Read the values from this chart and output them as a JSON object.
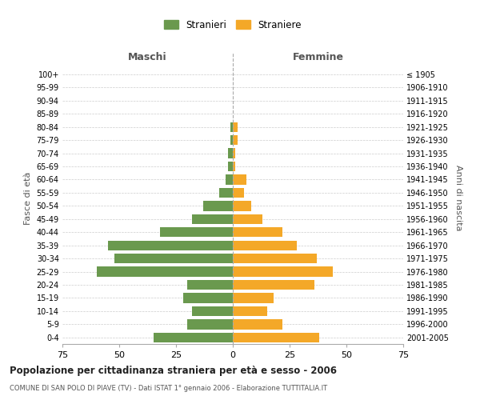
{
  "age_groups": [
    "0-4",
    "5-9",
    "10-14",
    "15-19",
    "20-24",
    "25-29",
    "30-34",
    "35-39",
    "40-44",
    "45-49",
    "50-54",
    "55-59",
    "60-64",
    "65-69",
    "70-74",
    "75-79",
    "80-84",
    "85-89",
    "90-94",
    "95-99",
    "100+"
  ],
  "birth_years": [
    "2001-2005",
    "1996-2000",
    "1991-1995",
    "1986-1990",
    "1981-1985",
    "1976-1980",
    "1971-1975",
    "1966-1970",
    "1961-1965",
    "1956-1960",
    "1951-1955",
    "1946-1950",
    "1941-1945",
    "1936-1940",
    "1931-1935",
    "1926-1930",
    "1921-1925",
    "1916-1920",
    "1911-1915",
    "1906-1910",
    "≤ 1905"
  ],
  "maschi": [
    35,
    20,
    18,
    22,
    20,
    60,
    52,
    55,
    32,
    18,
    13,
    6,
    3,
    2,
    2,
    1,
    1,
    0,
    0,
    0,
    0
  ],
  "femmine": [
    38,
    22,
    15,
    18,
    36,
    44,
    37,
    28,
    22,
    13,
    8,
    5,
    6,
    1,
    1,
    2,
    2,
    0,
    0,
    0,
    0
  ],
  "maschi_color": "#6a994e",
  "femmine_color": "#f4a828",
  "title": "Popolazione per cittadinanza straniera per età e sesso - 2006",
  "subtitle": "COMUNE DI SAN POLO DI PIAVE (TV) - Dati ISTAT 1° gennaio 2006 - Elaborazione TUTTITALIA.IT",
  "xlabel_left": "Maschi",
  "xlabel_right": "Femmine",
  "ylabel_left": "Fasce di età",
  "ylabel_right": "Anni di nascita",
  "legend_maschi": "Stranieri",
  "legend_femmine": "Straniere",
  "xlim": 75,
  "background_color": "#ffffff",
  "grid_color": "#cccccc",
  "bar_height": 0.75
}
